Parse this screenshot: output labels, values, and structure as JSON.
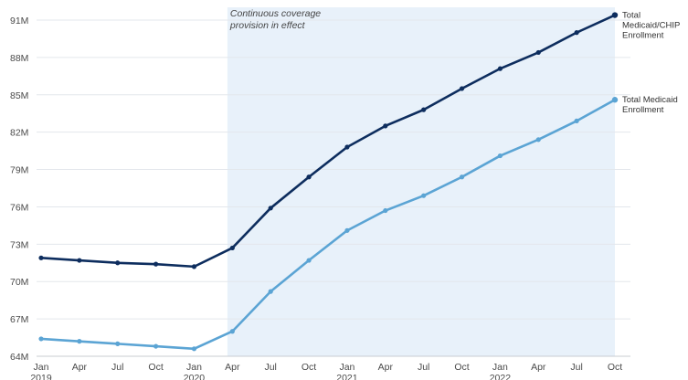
{
  "chart_data": {
    "type": "line",
    "title": "",
    "xlabel": "",
    "ylabel": "",
    "ylim": [
      64,
      92
    ],
    "yticks": [
      "64M",
      "67M",
      "70M",
      "73M",
      "76M",
      "79M",
      "82M",
      "85M",
      "88M",
      "91M"
    ],
    "ytick_values": [
      64,
      67,
      70,
      73,
      76,
      79,
      82,
      85,
      88,
      91
    ],
    "x": [
      "Jan 2019",
      "Apr 2019",
      "Jul 2019",
      "Oct 2019",
      "Jan 2020",
      "Apr 2020",
      "Jul 2020",
      "Oct 2020",
      "Jan 2021",
      "Apr 2021",
      "Jul 2021",
      "Oct 2021",
      "Jan 2022",
      "Apr 2022",
      "Jul 2022",
      "Oct 2022"
    ],
    "xtick_labels": [
      {
        "month": "Jan",
        "year": "2019"
      },
      {
        "month": "Apr",
        "year": ""
      },
      {
        "month": "Jul",
        "year": ""
      },
      {
        "month": "Oct",
        "year": ""
      },
      {
        "month": "Jan",
        "year": "2020"
      },
      {
        "month": "Apr",
        "year": ""
      },
      {
        "month": "Jul",
        "year": ""
      },
      {
        "month": "Oct",
        "year": ""
      },
      {
        "month": "Jan",
        "year": "2021"
      },
      {
        "month": "Apr",
        "year": ""
      },
      {
        "month": "Jul",
        "year": ""
      },
      {
        "month": "Oct",
        "year": ""
      },
      {
        "month": "Jan",
        "year": "2022"
      },
      {
        "month": "Apr",
        "year": ""
      },
      {
        "month": "Jul",
        "year": ""
      },
      {
        "month": "Oct",
        "year": ""
      }
    ],
    "series": [
      {
        "name": "Total Medicaid/CHIP Enrollment",
        "label_lines": [
          "Total",
          "Medicaid/CHIP",
          "Enrollment"
        ],
        "color": "#0d2d5e",
        "values": [
          71.9,
          71.7,
          71.5,
          71.4,
          71.2,
          72.7,
          75.9,
          78.4,
          80.8,
          82.5,
          83.8,
          85.5,
          87.1,
          88.4,
          90.0,
          91.4
        ]
      },
      {
        "name": "Total Medicaid Enrollment",
        "label_lines": [
          "Total Medicaid",
          "Enrollment"
        ],
        "color": "#5ba4d4",
        "values": [
          65.4,
          65.2,
          65.0,
          64.8,
          64.6,
          66.0,
          69.2,
          71.7,
          74.1,
          75.7,
          76.9,
          78.4,
          80.1,
          81.4,
          82.9,
          84.6
        ]
      }
    ],
    "shaded_region": {
      "from": "Apr 2020",
      "to": "Oct 2022",
      "label_lines": [
        "Continuous coverage",
        "provision in effect"
      ],
      "color": "#e8f1fa"
    },
    "grid": true,
    "legend": "right-end labels"
  }
}
